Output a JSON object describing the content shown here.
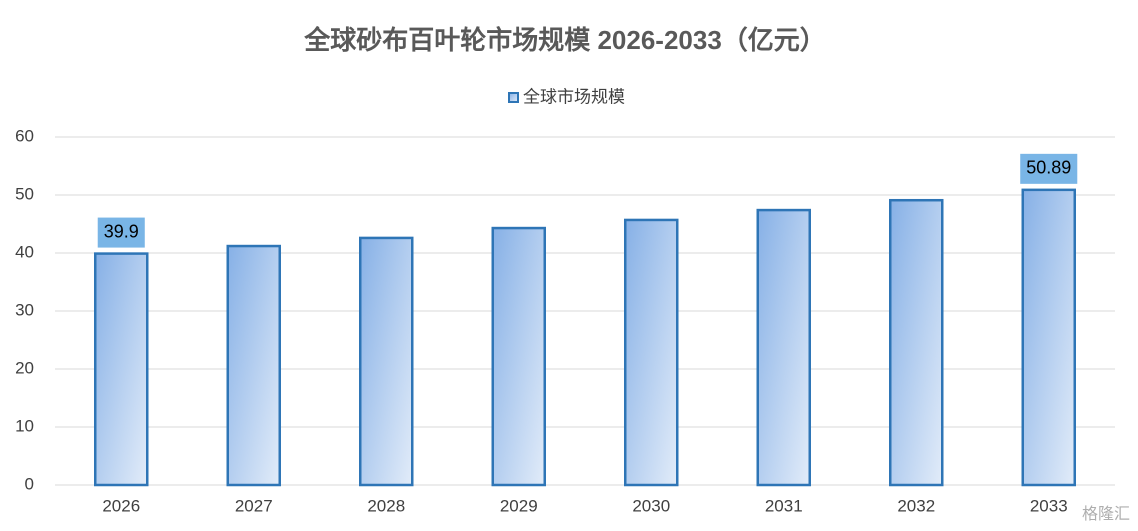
{
  "chart_data": {
    "type": "bar",
    "title": "全球砂布百叶轮市场规模 2026-2033（亿元）",
    "categories": [
      "2026",
      "2027",
      "2028",
      "2029",
      "2030",
      "2031",
      "2032",
      "2033"
    ],
    "series": [
      {
        "name": "全球市场规模",
        "color": "#2e75b6",
        "values": [
          39.9,
          41.2,
          42.6,
          44.3,
          45.7,
          47.4,
          49.1,
          50.89
        ],
        "value_labels": [
          "39.9",
          null,
          null,
          null,
          null,
          null,
          null,
          "50.89"
        ]
      }
    ],
    "ylim": [
      0,
      60
    ],
    "yticks": [
      0,
      10,
      20,
      30,
      40,
      50,
      60
    ],
    "grid": true,
    "legend": "top",
    "watermark": "格隆汇"
  }
}
